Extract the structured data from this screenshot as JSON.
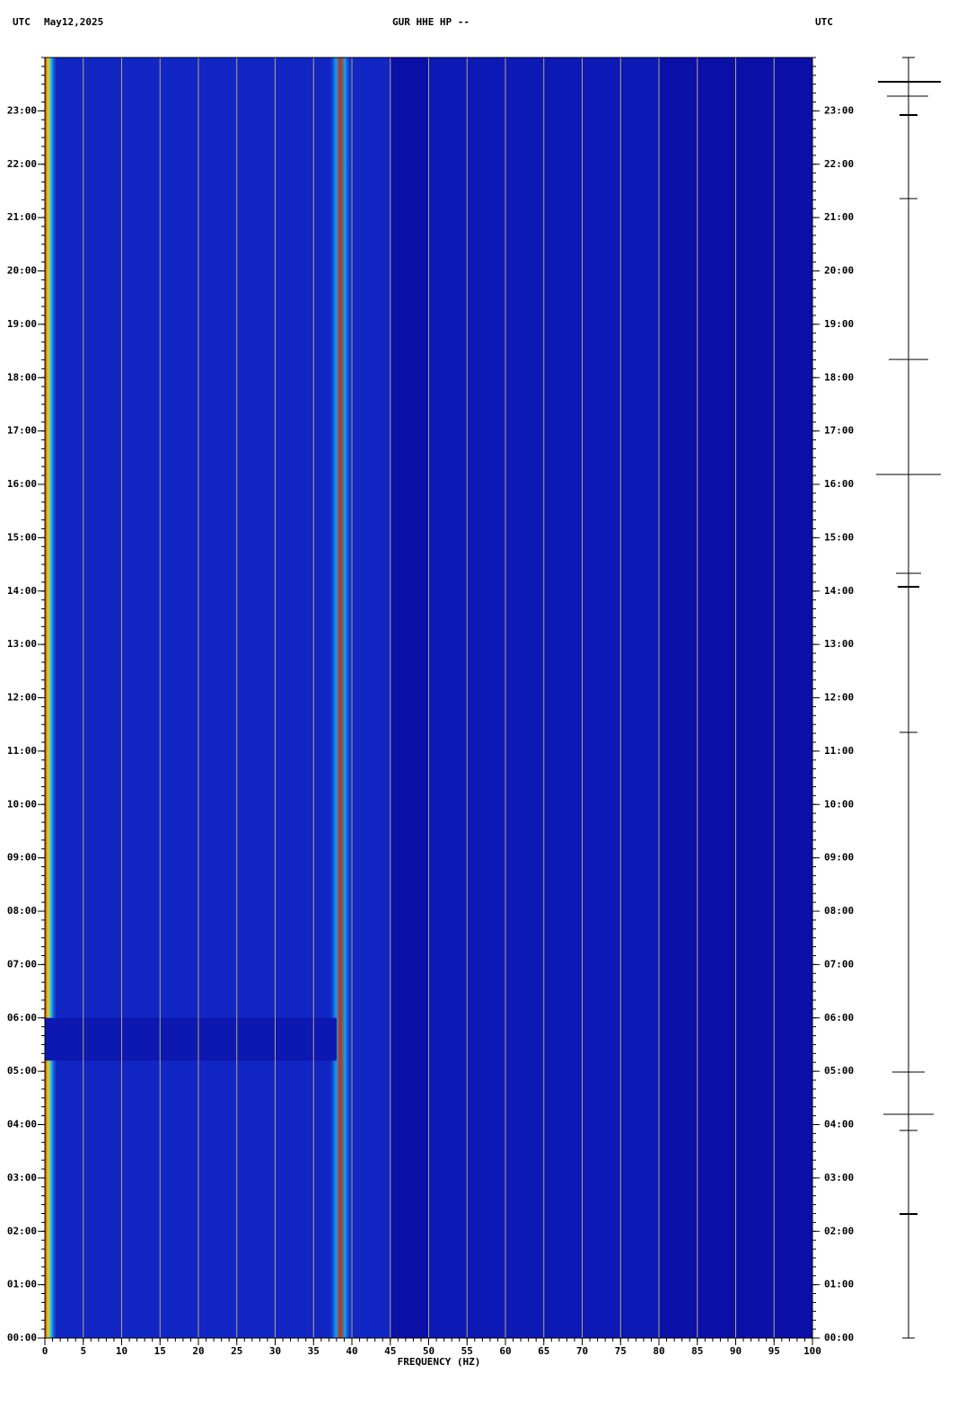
{
  "chart_data": {
    "type": "spectrogram",
    "title": "GUR HHE HP --",
    "date": "May12,2025",
    "timezone": "UTC",
    "x_label": "FREQUENCY (HZ)",
    "xlim": [
      0,
      100
    ],
    "xticks": [
      0,
      5,
      10,
      15,
      20,
      25,
      30,
      35,
      40,
      45,
      50,
      55,
      60,
      65,
      70,
      75,
      80,
      85,
      90,
      95,
      100
    ],
    "ylim": [
      0,
      24
    ],
    "yticks": [
      {
        "value": 0,
        "label": "00:00"
      },
      {
        "value": 1,
        "label": "01:00"
      },
      {
        "value": 2,
        "label": "02:00"
      },
      {
        "value": 3,
        "label": "03:00"
      },
      {
        "value": 4,
        "label": "04:00"
      },
      {
        "value": 5,
        "label": "05:00"
      },
      {
        "value": 6,
        "label": "06:00"
      },
      {
        "value": 7,
        "label": "07:00"
      },
      {
        "value": 8,
        "label": "08:00"
      },
      {
        "value": 9,
        "label": "09:00"
      },
      {
        "value": 10,
        "label": "10:00"
      },
      {
        "value": 11,
        "label": "11:00"
      },
      {
        "value": 12,
        "label": "12:00"
      },
      {
        "value": 13,
        "label": "13:00"
      },
      {
        "value": 14,
        "label": "14:00"
      },
      {
        "value": 15,
        "label": "15:00"
      },
      {
        "value": 16,
        "label": "16:00"
      },
      {
        "value": 17,
        "label": "17:00"
      },
      {
        "value": 18,
        "label": "18:00"
      },
      {
        "value": 19,
        "label": "19:00"
      },
      {
        "value": 20,
        "label": "20:00"
      },
      {
        "value": 21,
        "label": "21:00"
      },
      {
        "value": 22,
        "label": "22:00"
      },
      {
        "value": 23,
        "label": "23:00"
      }
    ],
    "grid": true,
    "background_color": "#0a10a8",
    "grid_color": "#b8a878"
  }
}
